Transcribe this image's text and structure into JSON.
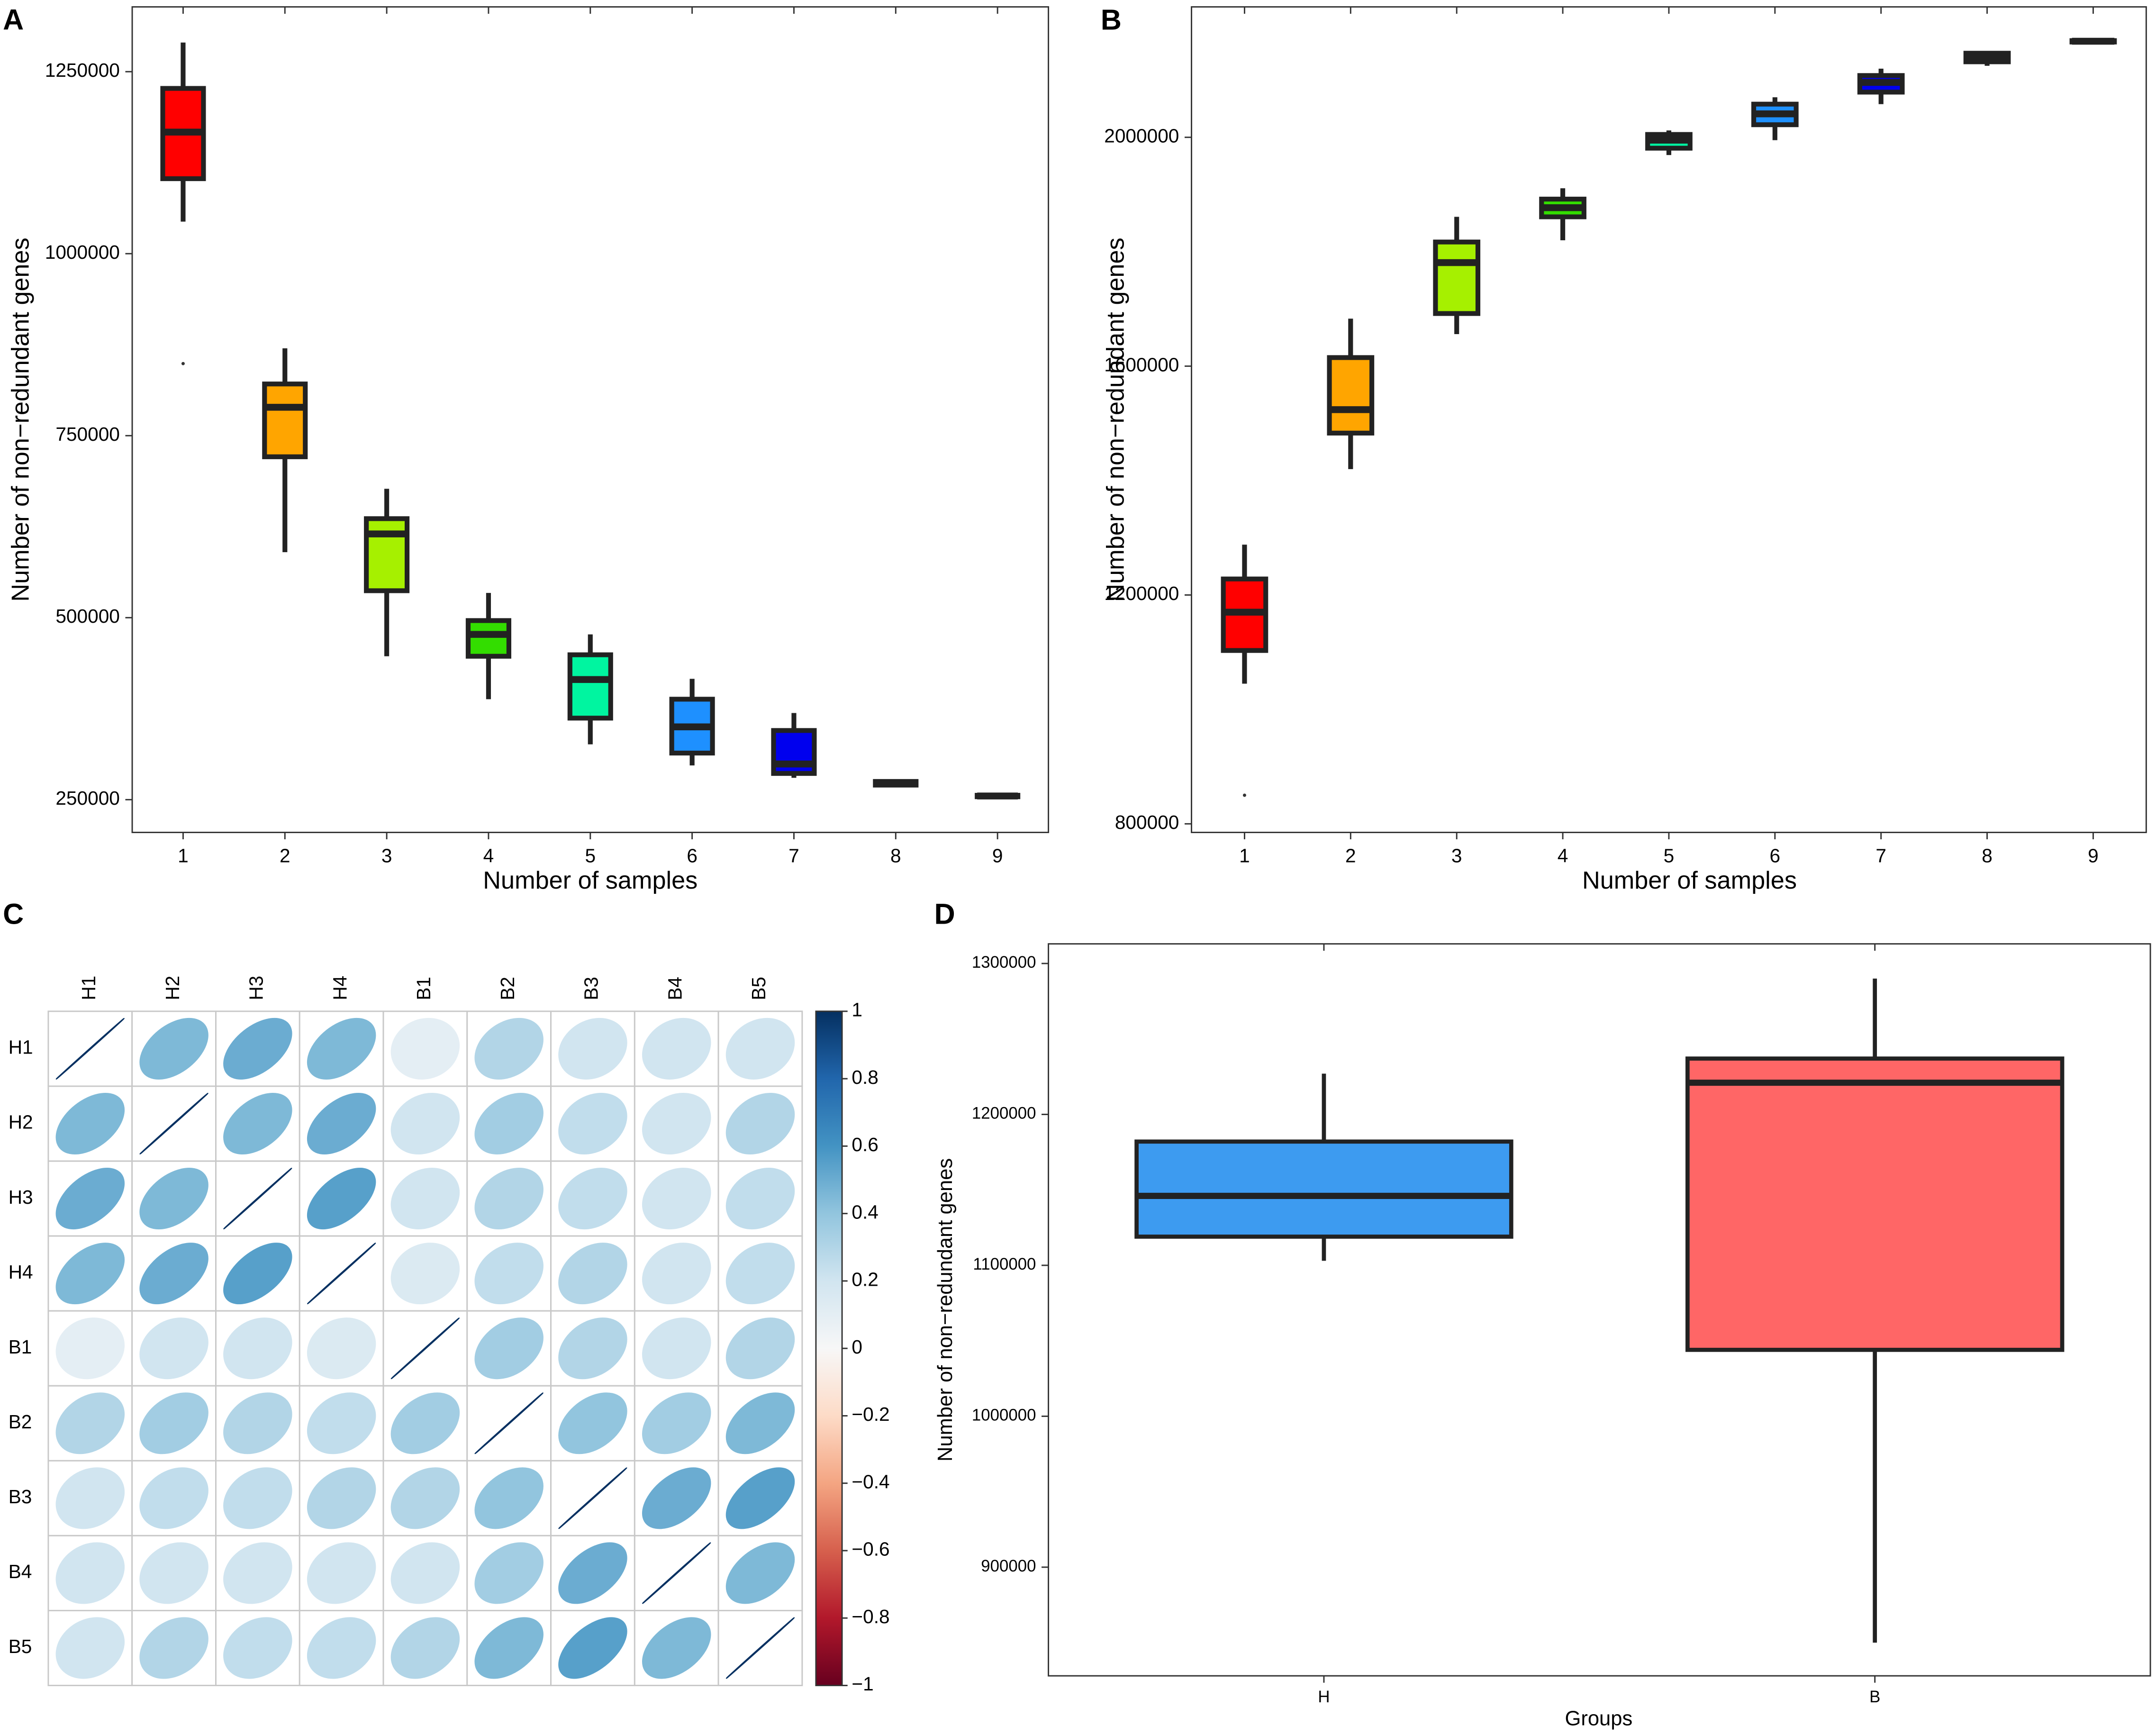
{
  "chart_data": [
    {
      "type": "box",
      "panel": "A",
      "x_label": "Number of samples",
      "y_label": "Number of non−redundant genes",
      "categories": [
        "1",
        "2",
        "3",
        "4",
        "5",
        "6",
        "7",
        "8",
        "9"
      ],
      "colors": [
        "#ff0000",
        "#ffa500",
        "#a6f000",
        "#33dd00",
        "#00f5a0",
        "#1e90ff",
        "#0000ee",
        "#8b00ff",
        "#ff00ff"
      ],
      "boxes": [
        {
          "low": 1044000,
          "q1": 1103000,
          "median": 1167000,
          "q3": 1227000,
          "high": 1290000,
          "outliers": [
            849000
          ]
        },
        {
          "low": 590000,
          "q1": 721000,
          "median": 789000,
          "q3": 821000,
          "high": 870000,
          "outliers": []
        },
        {
          "low": 447000,
          "q1": 537000,
          "median": 615000,
          "q3": 636000,
          "high": 677000,
          "outliers": []
        },
        {
          "low": 388000,
          "q1": 447000,
          "median": 477000,
          "q3": 496000,
          "high": 534000,
          "outliers": []
        },
        {
          "low": 326000,
          "q1": 362000,
          "median": 415000,
          "q3": 449000,
          "high": 477000,
          "outliers": []
        },
        {
          "low": 297000,
          "q1": 314000,
          "median": 350000,
          "q3": 388000,
          "high": 416000,
          "outliers": []
        },
        {
          "low": 280000,
          "q1": 286000,
          "median": 299000,
          "q3": 345000,
          "high": 369000,
          "outliers": []
        },
        {
          "low": 268000,
          "q1": 270000,
          "median": 273000,
          "q3": 275000,
          "high": 278000,
          "outliers": []
        },
        {
          "low": 253000,
          "q1": 254000,
          "median": 255000,
          "q3": 256000,
          "high": 257000,
          "outliers": []
        }
      ],
      "ylim": [
        205000,
        1339000
      ],
      "yticks": [
        250000,
        500000,
        750000,
        1000000,
        1250000
      ]
    },
    {
      "type": "box",
      "panel": "B",
      "x_label": "Number of samples",
      "y_label": "Number of non−redundant genes",
      "categories": [
        "1",
        "2",
        "3",
        "4",
        "5",
        "6",
        "7",
        "8",
        "9"
      ],
      "colors": [
        "#ff0000",
        "#ffa500",
        "#a6f000",
        "#33dd00",
        "#00f5a0",
        "#1e90ff",
        "#0000ee",
        "#8b00ff",
        "#ff00ff"
      ],
      "boxes": [
        {
          "low": 1045000,
          "q1": 1103000,
          "median": 1170000,
          "q3": 1228000,
          "high": 1288000,
          "outliers": [
            850000
          ]
        },
        {
          "low": 1420000,
          "q1": 1483000,
          "median": 1524000,
          "q3": 1615000,
          "high": 1683000,
          "outliers": []
        },
        {
          "low": 1656000,
          "q1": 1692000,
          "median": 1781000,
          "q3": 1817000,
          "high": 1861000,
          "outliers": []
        },
        {
          "low": 1820000,
          "q1": 1861000,
          "median": 1877000,
          "q3": 1892000,
          "high": 1911000,
          "outliers": []
        },
        {
          "low": 1969000,
          "q1": 1981000,
          "median": 1995000,
          "q3": 2005000,
          "high": 2012000,
          "outliers": []
        },
        {
          "low": 1995000,
          "q1": 2022000,
          "median": 2041000,
          "q3": 2058000,
          "high": 2070000,
          "outliers": []
        },
        {
          "low": 2058000,
          "q1": 2079000,
          "median": 2096000,
          "q3": 2108000,
          "high": 2120000,
          "outliers": []
        },
        {
          "low": 2125000,
          "q1": 2132000,
          "median": 2140000,
          "q3": 2147000,
          "high": 2149000,
          "outliers": []
        },
        {
          "low": 2165000,
          "q1": 2167000,
          "median": 2168000,
          "q3": 2169000,
          "high": 2171000,
          "outliers": []
        }
      ],
      "ylim": [
        785000,
        2228000
      ],
      "yticks": [
        800000,
        1200000,
        1600000,
        2000000
      ]
    },
    {
      "type": "corrplot",
      "panel": "C",
      "labels": [
        "H1",
        "H2",
        "H3",
        "H4",
        "B1",
        "B2",
        "B3",
        "B4",
        "B5"
      ],
      "matrix": [
        [
          1,
          0.45,
          0.5,
          0.45,
          0.1,
          0.3,
          0.2,
          0.2,
          0.2
        ],
        [
          0.45,
          1,
          0.45,
          0.5,
          0.2,
          0.35,
          0.25,
          0.2,
          0.3
        ],
        [
          0.5,
          0.45,
          1,
          0.55,
          0.2,
          0.3,
          0.25,
          0.2,
          0.25
        ],
        [
          0.45,
          0.5,
          0.55,
          1,
          0.15,
          0.25,
          0.3,
          0.2,
          0.25
        ],
        [
          0.1,
          0.2,
          0.2,
          0.15,
          1,
          0.35,
          0.3,
          0.2,
          0.3
        ],
        [
          0.3,
          0.35,
          0.3,
          0.25,
          0.35,
          1,
          0.4,
          0.35,
          0.45
        ],
        [
          0.2,
          0.25,
          0.25,
          0.3,
          0.3,
          0.4,
          1,
          0.5,
          0.55
        ],
        [
          0.2,
          0.2,
          0.2,
          0.2,
          0.2,
          0.35,
          0.5,
          1,
          0.45
        ],
        [
          0.2,
          0.3,
          0.25,
          0.25,
          0.3,
          0.45,
          0.55,
          0.45,
          1
        ]
      ],
      "colormap": [
        "#67001f",
        "#b2182b",
        "#d6604d",
        "#f4a582",
        "#fddbc7",
        "#f7f7f7",
        "#d1e5f0",
        "#92c5de",
        "#4393c3",
        "#2166ac",
        "#053061"
      ],
      "clim": [
        -1,
        1
      ],
      "cticks": [
        1,
        0.8,
        0.6,
        0.4,
        0.2,
        0,
        {
          "value": -0.2,
          "label": "−0.2"
        },
        {
          "value": -0.4,
          "label": "−0.4"
        },
        {
          "value": -0.6,
          "label": "−0.6"
        },
        {
          "value": -0.8,
          "label": "−0.8"
        },
        {
          "value": -1,
          "label": "−1"
        }
      ]
    },
    {
      "type": "box",
      "panel": "D",
      "x_label": "Groups",
      "y_label": "Number of non−redundant genes",
      "categories": [
        "H",
        "B"
      ],
      "colors": [
        "#3d9bf0",
        "#ff6666"
      ],
      "boxes": [
        {
          "low": 1103000,
          "q1": 1119000,
          "median": 1146000,
          "q3": 1182000,
          "high": 1227000,
          "outliers": []
        },
        {
          "low": 850000,
          "q1": 1044000,
          "median": 1221000,
          "q3": 1237000,
          "high": 1290000,
          "outliers": []
        }
      ],
      "ylim": [
        828000,
        1313000
      ],
      "yticks": [
        900000,
        1000000,
        1100000,
        1200000,
        1300000
      ]
    }
  ]
}
